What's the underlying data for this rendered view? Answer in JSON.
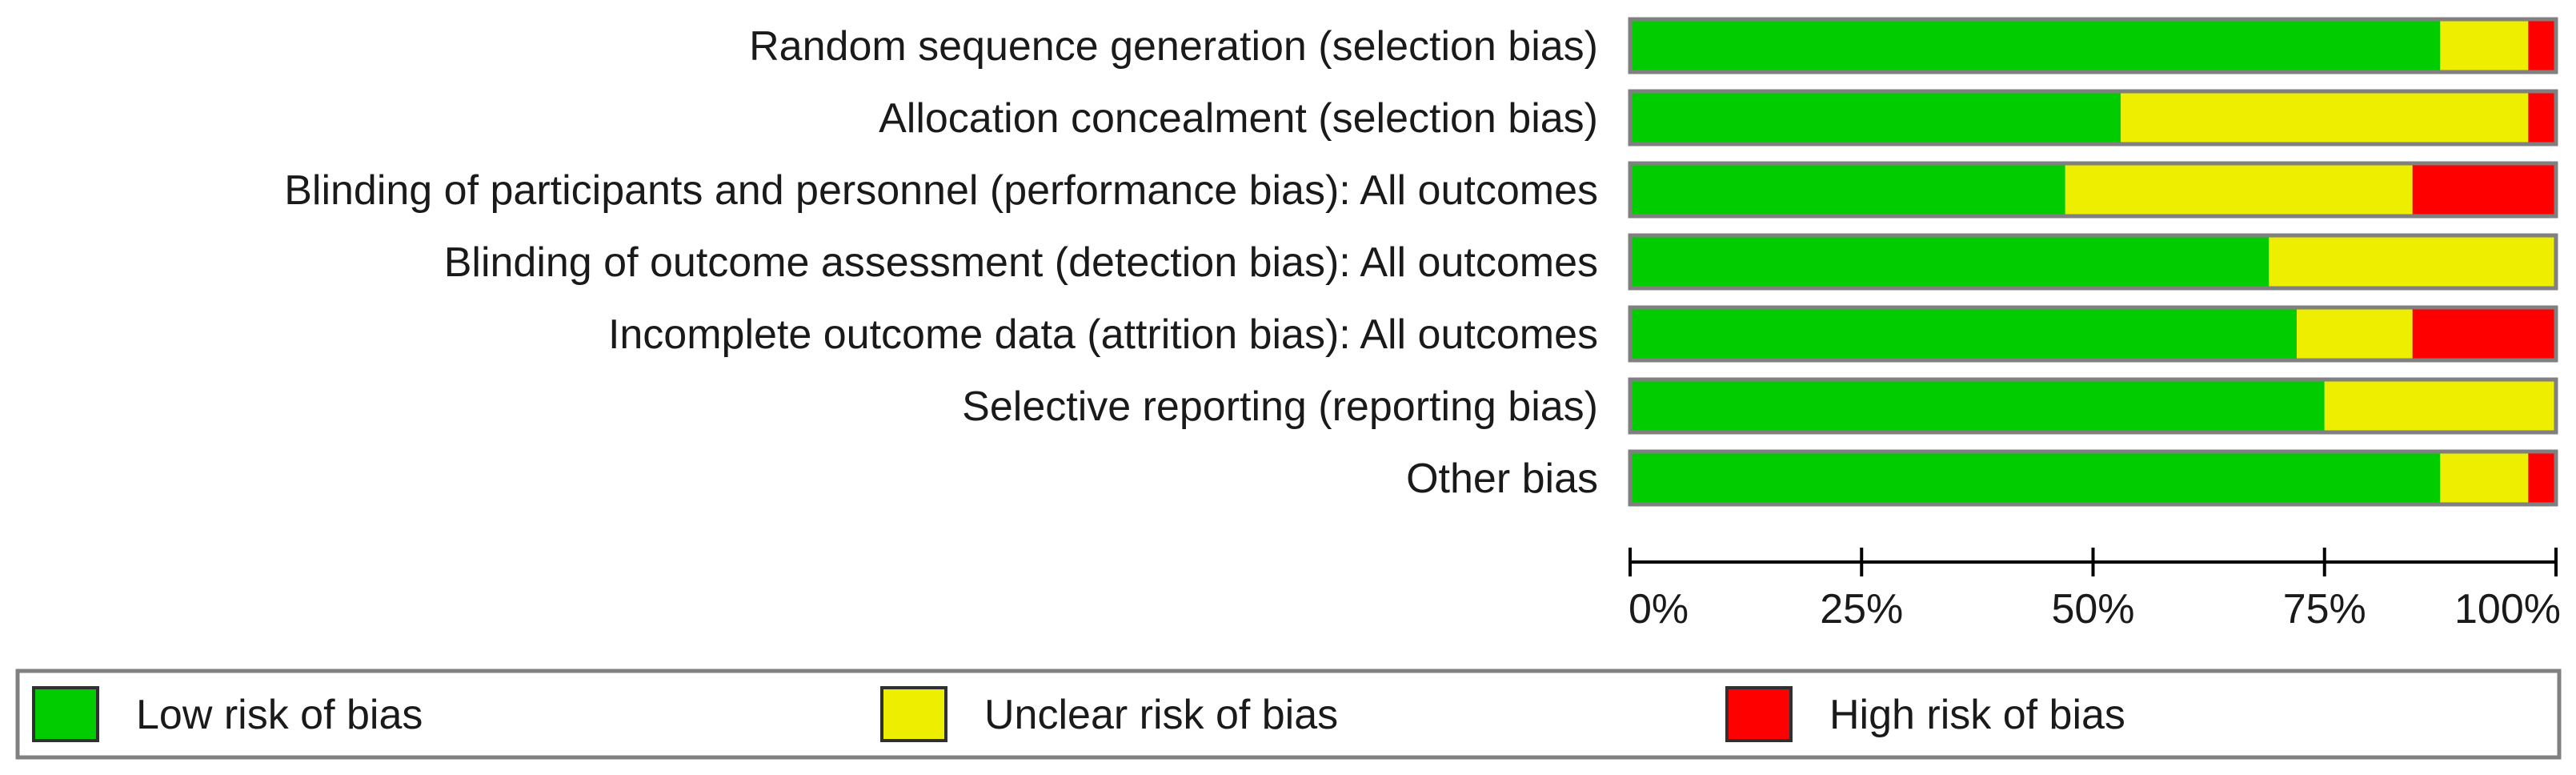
{
  "chart_data": {
    "type": "bar",
    "orientation": "horizontal",
    "stacked": true,
    "categories": [
      "Random sequence generation (selection bias)",
      "Allocation concealment (selection bias)",
      "Blinding of participants and personnel (performance bias): All outcomes",
      "Blinding of outcome assessment (detection bias): All outcomes",
      "Incomplete outcome data (attrition bias): All outcomes",
      "Selective reporting (reporting bias)",
      "Other bias"
    ],
    "series": [
      {
        "name": "Low risk of bias",
        "color": "#00cc00",
        "values": [
          87.5,
          53,
          47,
          69,
          72,
          75,
          87.5
        ]
      },
      {
        "name": "Unclear risk of bias",
        "color": "#eeee00",
        "values": [
          9.5,
          44,
          37.5,
          31,
          12.5,
          25,
          9.5
        ]
      },
      {
        "name": "High risk of bias",
        "color": "#ff0000",
        "values": [
          3,
          3,
          15.5,
          0,
          15.5,
          0,
          3
        ]
      }
    ],
    "x_ticks": [
      "0%",
      "25%",
      "50%",
      "75%",
      "100%"
    ],
    "xlim": [
      0,
      100
    ],
    "grid": false,
    "legend_position": "bottom",
    "bar_border_color": "#808080",
    "axis_color": "#000000"
  }
}
